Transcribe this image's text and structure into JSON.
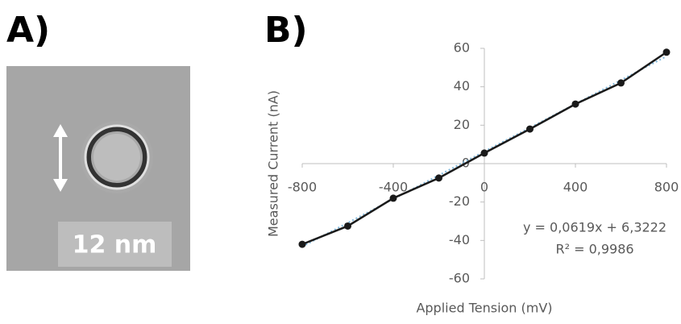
{
  "panel_labels": [
    "A)",
    "B)"
  ],
  "scale_bar": "12 nm",
  "chart_data": {
    "type": "line",
    "x_label": "Applied Tension (mV)",
    "y_label": "Measured Current (nA)",
    "x": [
      -800,
      -600,
      -400,
      -200,
      0,
      200,
      400,
      600,
      800
    ],
    "series": [
      {
        "color": "#1a1a1a",
        "values": [
          -42,
          -32.5,
          -18,
          -7.5,
          5.5,
          18,
          31,
          42,
          58
        ]
      }
    ],
    "trendline": {
      "slope": 0.0619,
      "intercept": 6.3222,
      "color": "#7fb8dc",
      "equation": "y = 0,0619x + 6,3222",
      "r2": "R² = 0,9986"
    },
    "xlim": [
      -800,
      800
    ],
    "ylim": [
      -60,
      60
    ],
    "xticks": [
      -800,
      -400,
      0,
      400,
      800
    ],
    "yticks": [
      -60,
      -40,
      -20,
      0,
      20,
      40,
      60
    ]
  }
}
